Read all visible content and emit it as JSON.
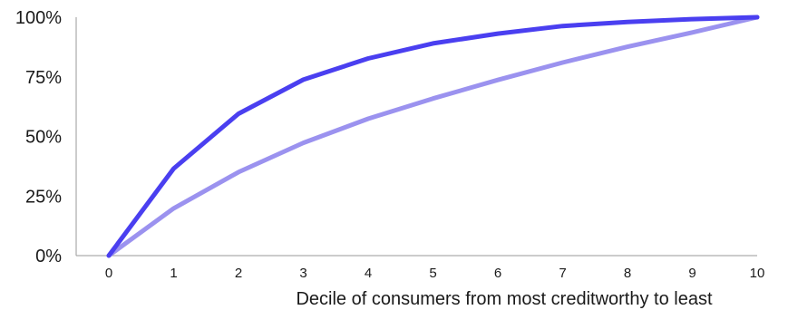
{
  "chart_data": {
    "type": "line",
    "title": "",
    "xlabel": "Decile of consumers from most creditworthy to least",
    "ylabel": "",
    "x": [
      0,
      1,
      2,
      3,
      4,
      5,
      6,
      7,
      8,
      9,
      10
    ],
    "x_tick_labels": [
      "0",
      "1",
      "2",
      "3",
      "4",
      "5",
      "6",
      "7",
      "8",
      "9",
      "10"
    ],
    "y_tick_labels": [
      "0%",
      "25%",
      "50%",
      "75%",
      "100%"
    ],
    "ylim": [
      0,
      100
    ],
    "xlim": [
      0,
      10
    ],
    "grid": false,
    "legend": "none",
    "series": [
      {
        "color": "#4a3ff0",
        "values": [
          0,
          36.5,
          59.5,
          73.8,
          82.7,
          89.0,
          93.1,
          96.3,
          98.0,
          99.2,
          100
        ]
      },
      {
        "color": "#9b92ef",
        "values": [
          0,
          19.8,
          35.0,
          47.3,
          57.4,
          65.9,
          73.7,
          81.0,
          87.6,
          93.6,
          100
        ]
      }
    ]
  }
}
